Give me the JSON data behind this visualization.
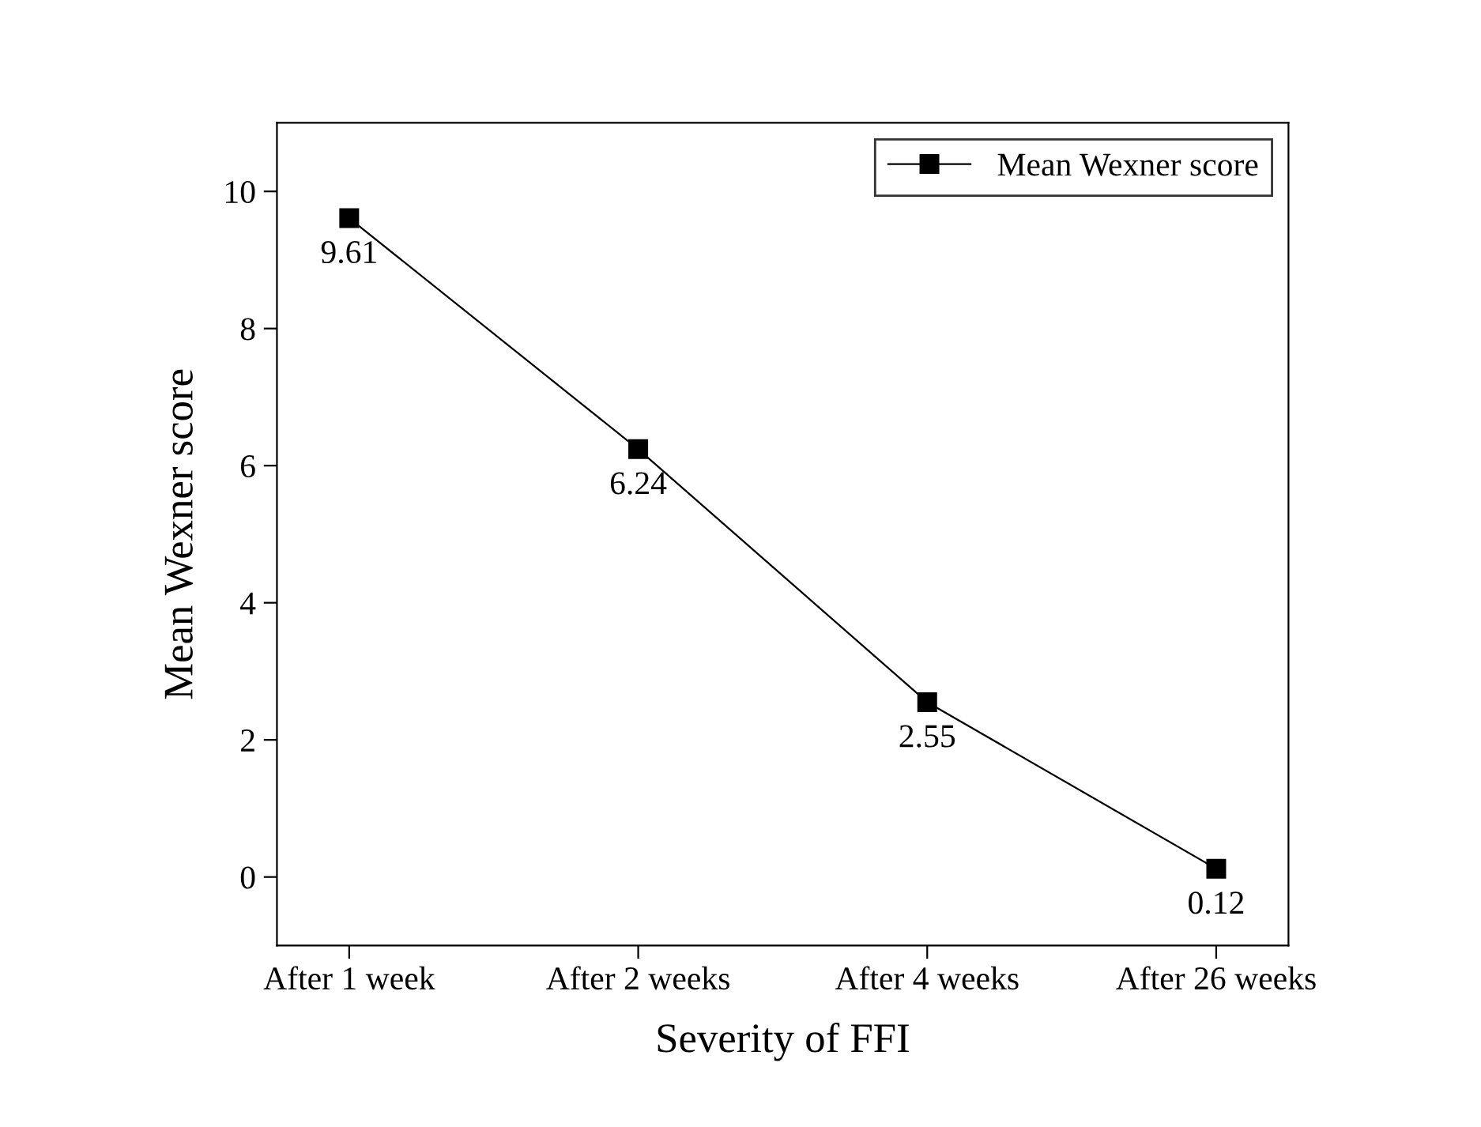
{
  "chart_data": {
    "type": "line",
    "xlabel": "Severity of FFI",
    "ylabel": "Mean Wexner score",
    "categories": [
      "After 1 week",
      "After 2 weeks",
      "After 4 weeks",
      "After 26 weeks"
    ],
    "series": [
      {
        "name": "Mean Wexner score",
        "color": "#000000",
        "values": [
          9.61,
          6.24,
          2.55,
          0.12
        ]
      }
    ],
    "ylim": [
      -1,
      11
    ],
    "yticks": [
      0,
      2,
      4,
      6,
      8,
      10
    ],
    "data_labels": true,
    "marker": "square",
    "line_style": "solid",
    "legend": "top right",
    "grid": false
  }
}
